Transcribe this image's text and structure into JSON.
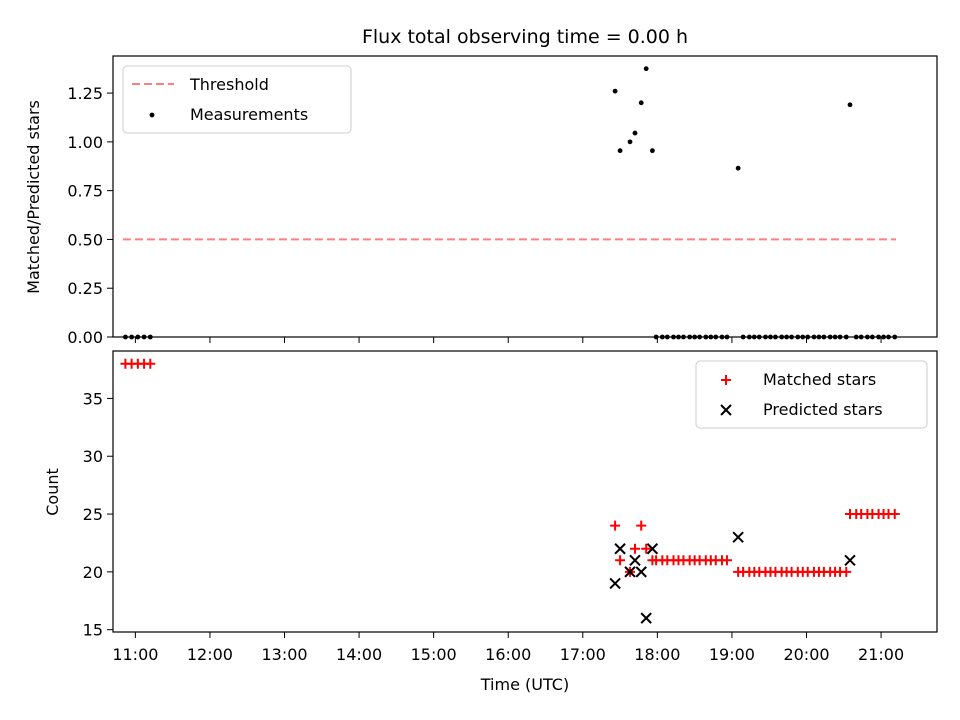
{
  "chart_data": [
    {
      "type": "scatter",
      "title": "Flux total observing time = 0.00 h",
      "ylabel": "Matched/Predicted stars",
      "xlabel": "",
      "xlim": [
        "10:42",
        "21:45"
      ],
      "ylim": [
        0.0,
        1.44
      ],
      "yticks": [
        0.0,
        0.25,
        0.5,
        0.75,
        1.0,
        1.25
      ],
      "ytick_labels": [
        "0.00",
        "0.25",
        "0.50",
        "0.75",
        "1.00",
        "1.25"
      ],
      "grid": false,
      "legend": "upper-left",
      "series": [
        {
          "name": "Threshold",
          "kind": "line",
          "style": "dashed",
          "color": "#ff7f7f",
          "x": [
            "10:50",
            "21:12"
          ],
          "y": [
            0.5,
            0.5
          ]
        },
        {
          "name": "Measurements",
          "kind": "scatter",
          "color": "#000000",
          "x": [
            "10:52",
            "10:57",
            "11:02",
            "11:07",
            "11:12",
            "17:26",
            "17:30",
            "17:38",
            "17:42",
            "17:47",
            "17:51",
            "17:56",
            "17:59",
            "18:04",
            "18:08",
            "18:13",
            "18:17",
            "18:21",
            "18:26",
            "18:30",
            "18:34",
            "18:39",
            "18:43",
            "18:47",
            "18:52",
            "18:56",
            "19:05",
            "19:09",
            "19:14",
            "19:18",
            "19:22",
            "19:27",
            "19:31",
            "19:35",
            "19:40",
            "19:44",
            "19:48",
            "19:53",
            "19:57",
            "20:01",
            "20:06",
            "20:10",
            "20:14",
            "20:19",
            "20:23",
            "20:27",
            "20:32",
            "20:35",
            "20:40",
            "20:44",
            "20:49",
            "20:53",
            "20:58",
            "21:02",
            "21:06",
            "21:11"
          ],
          "y": [
            0,
            0,
            0,
            0,
            0,
            1.26,
            0.955,
            1.0,
            1.045,
            1.2,
            1.375,
            0.955,
            0,
            0,
            0,
            0,
            0,
            0,
            0,
            0,
            0,
            0,
            0,
            0,
            0,
            0,
            0.865,
            0,
            0,
            0,
            0,
            0,
            0,
            0,
            0,
            0,
            0,
            0,
            0,
            0,
            0,
            0,
            0,
            0,
            0,
            0,
            0,
            1.19,
            0,
            0,
            0,
            0,
            0,
            0,
            0,
            0
          ]
        }
      ]
    },
    {
      "type": "scatter",
      "title": "",
      "ylabel": "Count",
      "xlabel": "Time (UTC)",
      "xlim": [
        "10:42",
        "21:45"
      ],
      "ylim": [
        14.8,
        39.1
      ],
      "yticks": [
        15,
        20,
        25,
        30,
        35
      ],
      "xticks": [
        "11:00",
        "12:00",
        "13:00",
        "14:00",
        "15:00",
        "16:00",
        "17:00",
        "18:00",
        "19:00",
        "20:00",
        "21:00"
      ],
      "grid": false,
      "legend": "upper-right",
      "series": [
        {
          "name": "Matched stars",
          "kind": "scatter",
          "marker": "+",
          "color": "#ff0000",
          "x": [
            "10:52",
            "10:57",
            "11:02",
            "11:07",
            "11:12",
            "17:26",
            "17:30",
            "17:38",
            "17:42",
            "17:47",
            "17:51",
            "17:56",
            "17:59",
            "18:04",
            "18:08",
            "18:13",
            "18:17",
            "18:21",
            "18:26",
            "18:30",
            "18:34",
            "18:39",
            "18:43",
            "18:47",
            "18:52",
            "18:56",
            "19:05",
            "19:09",
            "19:14",
            "19:18",
            "19:22",
            "19:27",
            "19:31",
            "19:35",
            "19:40",
            "19:44",
            "19:48",
            "19:53",
            "19:57",
            "20:01",
            "20:06",
            "20:10",
            "20:14",
            "20:19",
            "20:23",
            "20:27",
            "20:32",
            "20:35",
            "20:40",
            "20:44",
            "20:49",
            "20:53",
            "20:58",
            "21:02",
            "21:06",
            "21:11"
          ],
          "y": [
            38,
            38,
            38,
            38,
            38,
            24,
            21,
            20,
            22,
            24,
            22,
            21,
            21,
            21,
            21,
            21,
            21,
            21,
            21,
            21,
            21,
            21,
            21,
            21,
            21,
            21,
            20,
            20,
            20,
            20,
            20,
            20,
            20,
            20,
            20,
            20,
            20,
            20,
            20,
            20,
            20,
            20,
            20,
            20,
            20,
            20,
            20,
            25,
            25,
            25,
            25,
            25,
            25,
            25,
            25,
            25
          ]
        },
        {
          "name": "Predicted stars",
          "kind": "scatter",
          "marker": "x",
          "color": "#000000",
          "x": [
            "17:26",
            "17:30",
            "17:38",
            "17:42",
            "17:47",
            "17:51",
            "17:56",
            "19:05",
            "20:35"
          ],
          "y": [
            19,
            22,
            20,
            21,
            20,
            16,
            22,
            23,
            21
          ]
        }
      ]
    }
  ]
}
